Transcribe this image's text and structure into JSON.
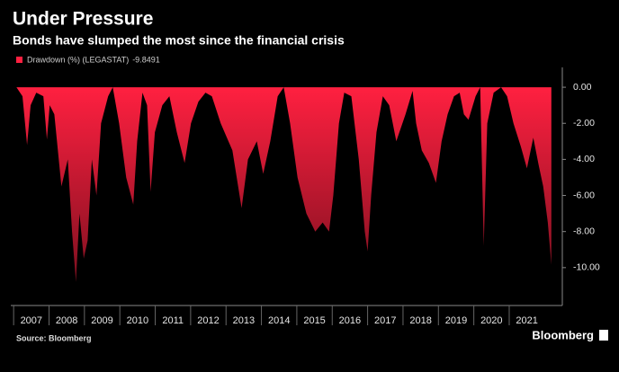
{
  "chart_data": {
    "type": "area",
    "title": "Under Pressure",
    "subtitle": "Bonds have slumped the most since the financial crisis",
    "source": "Source: Bloomberg",
    "brand": "Bloomberg",
    "series": [
      {
        "name": "Drawdown (%) (LEGASTAT)",
        "color": "#ff2040",
        "x": [
          2007.08,
          2007.25,
          2007.38,
          2007.48,
          2007.64,
          2007.84,
          2007.94,
          2008.02,
          2008.15,
          2008.35,
          2008.53,
          2008.65,
          2008.76,
          2008.86,
          2008.98,
          2009.09,
          2009.21,
          2009.34,
          2009.47,
          2009.67,
          2009.8,
          2009.98,
          2010.18,
          2010.38,
          2010.49,
          2010.64,
          2010.77,
          2010.87,
          2010.99,
          2011.2,
          2011.4,
          2011.61,
          2011.83,
          2012.01,
          2012.22,
          2012.42,
          2012.6,
          2012.85,
          2013.18,
          2013.44,
          2013.62,
          2013.87,
          2014.05,
          2014.25,
          2014.46,
          2014.63,
          2014.81,
          2015.02,
          2015.27,
          2015.52,
          2015.73,
          2015.91,
          2016.03,
          2016.19,
          2016.34,
          2016.54,
          2016.75,
          2016.92,
          2017.0,
          2017.1,
          2017.25,
          2017.43,
          2017.61,
          2017.81,
          2018.07,
          2018.27,
          2018.37,
          2018.53,
          2018.73,
          2018.93,
          2019.09,
          2019.26,
          2019.44,
          2019.6,
          2019.72,
          2019.85,
          2020.05,
          2020.18,
          2020.28,
          2020.38,
          2020.56,
          2020.77,
          2020.94,
          2021.12,
          2021.33,
          2021.5,
          2021.68,
          2021.83,
          2021.96,
          2022.09,
          2022.19
        ],
        "values": [
          0,
          -0.5,
          -3.2,
          -1,
          -0.3,
          -0.5,
          -2.9,
          -1,
          -1.5,
          -5.5,
          -4,
          -8,
          -10.8,
          -7,
          -9.5,
          -8.5,
          -4,
          -6,
          -2,
          -0.5,
          0,
          -2,
          -5,
          -6.5,
          -3,
          -0.3,
          -1,
          -5.8,
          -2.5,
          -1,
          -0.5,
          -2.5,
          -4.2,
          -2,
          -0.8,
          -0.3,
          -0.5,
          -2,
          -3.5,
          -6.7,
          -4,
          -3,
          -4.8,
          -3,
          -0.5,
          0,
          -2,
          -5,
          -7,
          -8,
          -7.5,
          -8,
          -6,
          -2,
          -0.3,
          -0.5,
          -4,
          -8,
          -9.1,
          -6,
          -2.5,
          -0.5,
          -1,
          -3,
          -1.5,
          -0.2,
          -2,
          -3.5,
          -4.2,
          -5.3,
          -3,
          -1.5,
          -0.5,
          -0.3,
          -1.5,
          -1.8,
          -0.5,
          0,
          -8.8,
          -2,
          -0.3,
          0,
          -0.5,
          -2,
          -3.3,
          -4.5,
          -2.8,
          -4.3,
          -5.5,
          -7.5,
          -9.8491
        ]
      }
    ],
    "xlim": [
      2006.92,
      2022.5
    ],
    "xticks": [
      2007,
      2008,
      2009,
      2010,
      2011,
      2012,
      2013,
      2014,
      2015,
      2016,
      2017,
      2018,
      2019,
      2020,
      2021
    ],
    "ylim": [
      -12.1,
      1.1
    ],
    "yticks": [
      {
        "value": 0,
        "label": "0.00"
      },
      {
        "value": -2,
        "label": "-2.00"
      },
      {
        "value": -4,
        "label": "-4.00"
      },
      {
        "value": -6,
        "label": "-6.00"
      },
      {
        "value": -8,
        "label": "-8.00"
      },
      {
        "value": -10,
        "label": "-10.00"
      }
    ]
  }
}
